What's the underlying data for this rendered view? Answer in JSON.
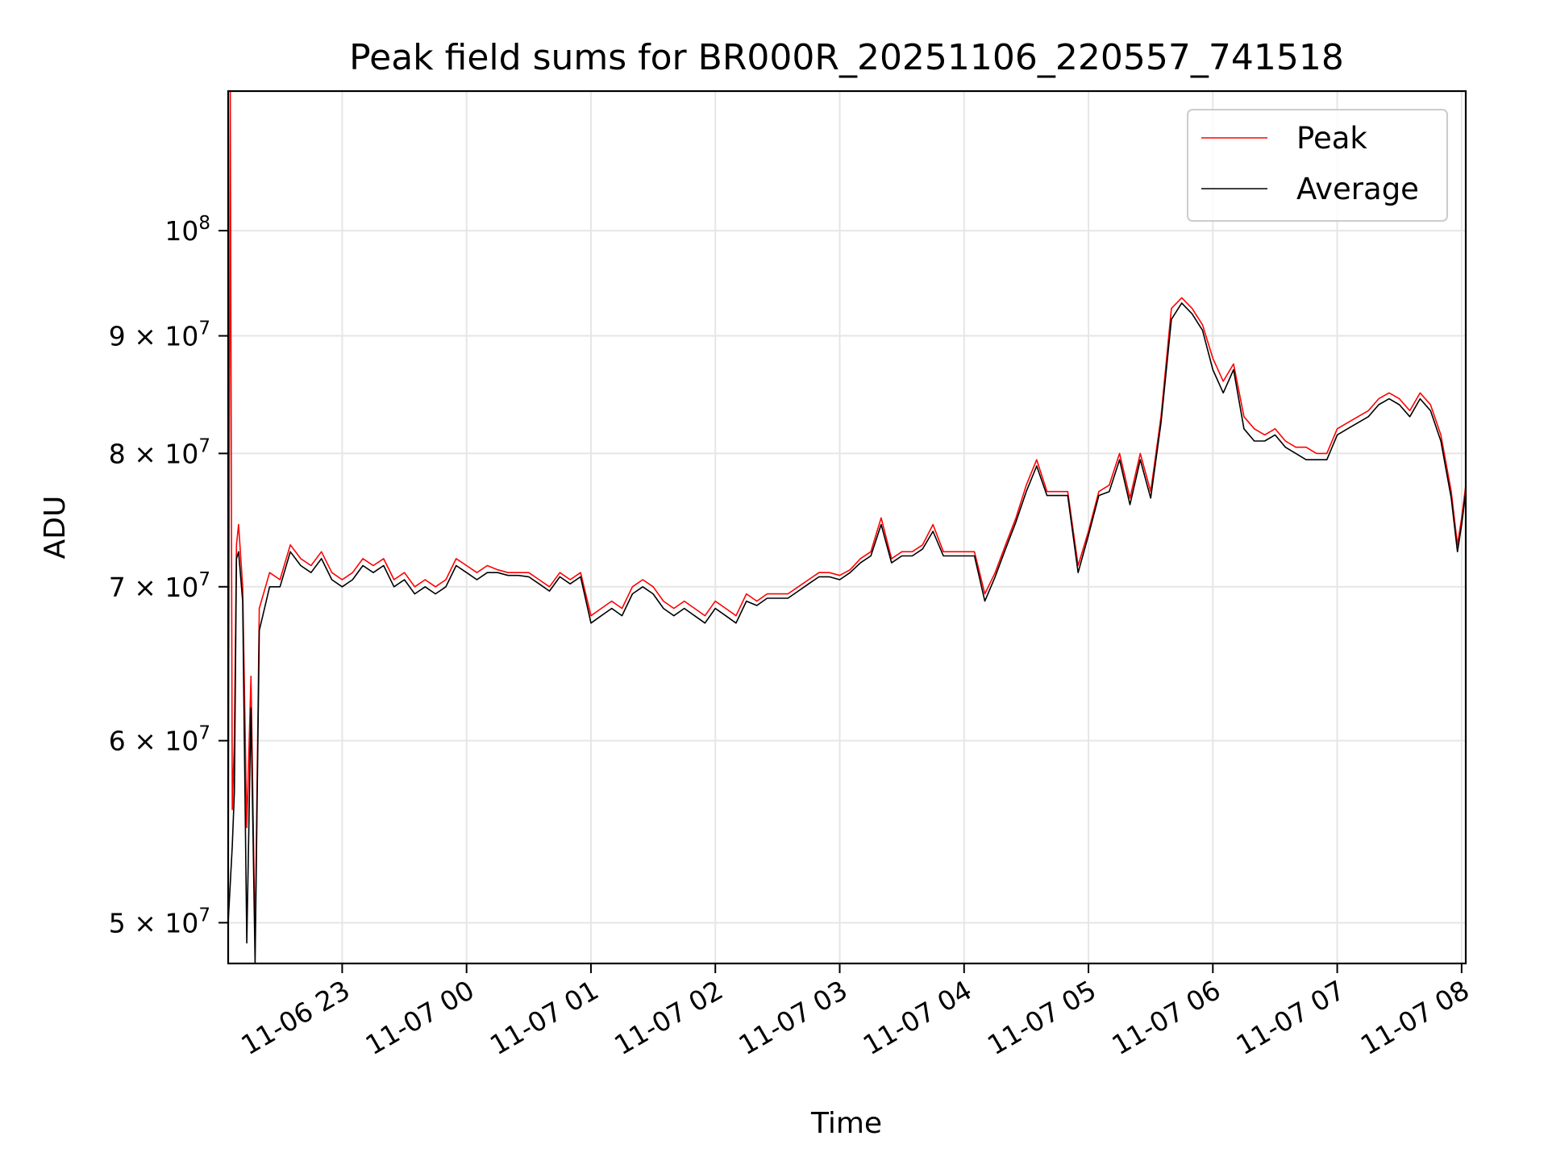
{
  "chart_data": {
    "type": "line",
    "title": "Peak field sums for BR000R_20251106_220557_741518",
    "xlabel": "Time",
    "ylabel": "ADU",
    "yscale": "log",
    "ylim": [
      48000000,
      115000000
    ],
    "xlim": [
      "11-06 22:05",
      "11-07 08:02"
    ],
    "grid": true,
    "legend_position": "top-right",
    "x_ticks": [
      {
        "value": "11-06 23:00",
        "label": "11-06 23"
      },
      {
        "value": "11-07 00:00",
        "label": "11-07 00"
      },
      {
        "value": "11-07 01:00",
        "label": "11-07 01"
      },
      {
        "value": "11-07 02:00",
        "label": "11-07 02"
      },
      {
        "value": "11-07 03:00",
        "label": "11-07 03"
      },
      {
        "value": "11-07 04:00",
        "label": "11-07 04"
      },
      {
        "value": "11-07 05:00",
        "label": "11-07 05"
      },
      {
        "value": "11-07 06:00",
        "label": "11-07 06"
      },
      {
        "value": "11-07 07:00",
        "label": "11-07 07"
      },
      {
        "value": "11-07 08:00",
        "label": "11-07 08"
      }
    ],
    "y_ticks": [
      {
        "value": 50000000,
        "mantissa": "5",
        "base": "10",
        "exp": "7"
      },
      {
        "value": 60000000,
        "mantissa": "6",
        "base": "10",
        "exp": "7"
      },
      {
        "value": 70000000,
        "mantissa": "7",
        "base": "10",
        "exp": "7"
      },
      {
        "value": 80000000,
        "mantissa": "8",
        "base": "10",
        "exp": "7"
      },
      {
        "value": 90000000,
        "mantissa": "9",
        "base": "10",
        "exp": "7"
      },
      {
        "value": 100000000,
        "mantissa": "",
        "base": "10",
        "exp": "8"
      }
    ],
    "series": [
      {
        "name": "Peak",
        "color": "#ff0000",
        "x": [
          "11-06 22:05",
          "11-06 22:06",
          "11-06 22:07",
          "11-06 22:08",
          "11-06 22:09",
          "11-06 22:10",
          "11-06 22:12",
          "11-06 22:14",
          "11-06 22:16",
          "11-06 22:18",
          "11-06 22:20",
          "11-06 22:25",
          "11-06 22:30",
          "11-06 22:35",
          "11-06 22:40",
          "11-06 22:45",
          "11-06 22:50",
          "11-06 22:55",
          "11-06 23:00",
          "11-06 23:05",
          "11-06 23:10",
          "11-06 23:15",
          "11-06 23:20",
          "11-06 23:25",
          "11-06 23:30",
          "11-06 23:35",
          "11-06 23:40",
          "11-06 23:45",
          "11-06 23:50",
          "11-06 23:55",
          "11-07 00:00",
          "11-07 00:05",
          "11-07 00:10",
          "11-07 00:15",
          "11-07 00:20",
          "11-07 00:25",
          "11-07 00:30",
          "11-07 00:35",
          "11-07 00:40",
          "11-07 00:45",
          "11-07 00:50",
          "11-07 00:55",
          "11-07 01:00",
          "11-07 01:05",
          "11-07 01:10",
          "11-07 01:15",
          "11-07 01:20",
          "11-07 01:25",
          "11-07 01:30",
          "11-07 01:35",
          "11-07 01:40",
          "11-07 01:45",
          "11-07 01:50",
          "11-07 01:55",
          "11-07 02:00",
          "11-07 02:05",
          "11-07 02:10",
          "11-07 02:15",
          "11-07 02:20",
          "11-07 02:25",
          "11-07 02:30",
          "11-07 02:35",
          "11-07 02:40",
          "11-07 02:45",
          "11-07 02:50",
          "11-07 02:55",
          "11-07 03:00",
          "11-07 03:05",
          "11-07 03:10",
          "11-07 03:15",
          "11-07 03:20",
          "11-07 03:25",
          "11-07 03:30",
          "11-07 03:35",
          "11-07 03:40",
          "11-07 03:45",
          "11-07 03:50",
          "11-07 03:55",
          "11-07 04:00",
          "11-07 04:05",
          "11-07 04:10",
          "11-07 04:15",
          "11-07 04:20",
          "11-07 04:25",
          "11-07 04:30",
          "11-07 04:35",
          "11-07 04:40",
          "11-07 04:45",
          "11-07 04:50",
          "11-07 04:55",
          "11-07 05:00",
          "11-07 05:05",
          "11-07 05:10",
          "11-07 05:15",
          "11-07 05:20",
          "11-07 05:25",
          "11-07 05:30",
          "11-07 05:35",
          "11-07 05:40",
          "11-07 05:45",
          "11-07 05:50",
          "11-07 05:55",
          "11-07 06:00",
          "11-07 06:05",
          "11-07 06:10",
          "11-07 06:15",
          "11-07 06:20",
          "11-07 06:25",
          "11-07 06:30",
          "11-07 06:35",
          "11-07 06:40",
          "11-07 06:45",
          "11-07 06:50",
          "11-07 06:55",
          "11-07 07:00",
          "11-07 07:05",
          "11-07 07:10",
          "11-07 07:15",
          "11-07 07:20",
          "11-07 07:25",
          "11-07 07:30",
          "11-07 07:35",
          "11-07 07:40",
          "11-07 07:45",
          "11-07 07:50",
          "11-07 07:55",
          "11-07 07:58",
          "11-07 08:00",
          "11-07 08:02"
        ],
        "y": [
          51000000,
          115000000,
          56000000,
          60000000,
          73000000,
          74500000,
          70000000,
          55000000,
          64000000,
          49000000,
          68500000,
          71000000,
          70500000,
          73000000,
          72000000,
          71500000,
          72500000,
          71000000,
          70500000,
          71000000,
          72000000,
          71500000,
          72000000,
          70500000,
          71000000,
          70000000,
          70500000,
          70000000,
          70500000,
          72000000,
          71500000,
          71000000,
          71500000,
          71200000,
          71000000,
          71000000,
          71000000,
          70500000,
          70000000,
          71000000,
          70500000,
          71000000,
          68000000,
          68500000,
          69000000,
          68500000,
          70000000,
          70500000,
          70000000,
          69000000,
          68500000,
          69000000,
          68500000,
          68000000,
          69000000,
          68500000,
          68000000,
          69500000,
          69000000,
          69500000,
          69500000,
          69500000,
          70000000,
          70500000,
          71000000,
          71000000,
          70800000,
          71200000,
          72000000,
          72500000,
          75000000,
          72000000,
          72500000,
          72500000,
          73000000,
          74500000,
          72500000,
          72500000,
          72500000,
          72500000,
          69500000,
          71000000,
          73000000,
          75000000,
          77500000,
          79500000,
          77000000,
          77000000,
          77000000,
          71500000,
          74000000,
          77000000,
          77500000,
          80000000,
          76500000,
          80000000,
          77000000,
          83000000,
          92500000,
          93500000,
          92500000,
          91000000,
          88000000,
          86000000,
          87500000,
          83000000,
          82000000,
          81500000,
          82000000,
          81000000,
          80500000,
          80500000,
          80000000,
          80000000,
          82000000,
          82500000,
          83000000,
          83500000,
          84500000,
          85000000,
          84500000,
          83500000,
          85000000,
          84000000,
          81500000,
          77000000,
          73000000,
          75000000,
          77500000
        ]
      },
      {
        "name": "Average",
        "color": "#000000",
        "x": [
          "11-06 22:05",
          "11-06 22:06",
          "11-06 22:07",
          "11-06 22:08",
          "11-06 22:09",
          "11-06 22:10",
          "11-06 22:12",
          "11-06 22:14",
          "11-06 22:16",
          "11-06 22:18",
          "11-06 22:20",
          "11-06 22:25",
          "11-06 22:30",
          "11-06 22:35",
          "11-06 22:40",
          "11-06 22:45",
          "11-06 22:50",
          "11-06 22:55",
          "11-06 23:00",
          "11-06 23:05",
          "11-06 23:10",
          "11-06 23:15",
          "11-06 23:20",
          "11-06 23:25",
          "11-06 23:30",
          "11-06 23:35",
          "11-06 23:40",
          "11-06 23:45",
          "11-06 23:50",
          "11-06 23:55",
          "11-07 00:00",
          "11-07 00:05",
          "11-07 00:10",
          "11-07 00:15",
          "11-07 00:20",
          "11-07 00:25",
          "11-07 00:30",
          "11-07 00:35",
          "11-07 00:40",
          "11-07 00:45",
          "11-07 00:50",
          "11-07 00:55",
          "11-07 01:00",
          "11-07 01:05",
          "11-07 01:10",
          "11-07 01:15",
          "11-07 01:20",
          "11-07 01:25",
          "11-07 01:30",
          "11-07 01:35",
          "11-07 01:40",
          "11-07 01:45",
          "11-07 01:50",
          "11-07 01:55",
          "11-07 02:00",
          "11-07 02:05",
          "11-07 02:10",
          "11-07 02:15",
          "11-07 02:20",
          "11-07 02:25",
          "11-07 02:30",
          "11-07 02:35",
          "11-07 02:40",
          "11-07 02:45",
          "11-07 02:50",
          "11-07 02:55",
          "11-07 03:00",
          "11-07 03:05",
          "11-07 03:10",
          "11-07 03:15",
          "11-07 03:20",
          "11-07 03:25",
          "11-07 03:30",
          "11-07 03:35",
          "11-07 03:40",
          "11-07 03:45",
          "11-07 03:50",
          "11-07 03:55",
          "11-07 04:00",
          "11-07 04:05",
          "11-07 04:10",
          "11-07 04:15",
          "11-07 04:20",
          "11-07 04:25",
          "11-07 04:30",
          "11-07 04:35",
          "11-07 04:40",
          "11-07 04:45",
          "11-07 04:50",
          "11-07 04:55",
          "11-07 05:00",
          "11-07 05:05",
          "11-07 05:10",
          "11-07 05:15",
          "11-07 05:20",
          "11-07 05:25",
          "11-07 05:30",
          "11-07 05:35",
          "11-07 05:40",
          "11-07 05:45",
          "11-07 05:50",
          "11-07 05:55",
          "11-07 06:00",
          "11-07 06:05",
          "11-07 06:10",
          "11-07 06:15",
          "11-07 06:20",
          "11-07 06:25",
          "11-07 06:30",
          "11-07 06:35",
          "11-07 06:40",
          "11-07 06:45",
          "11-07 06:50",
          "11-07 06:55",
          "11-07 07:00",
          "11-07 07:05",
          "11-07 07:10",
          "11-07 07:15",
          "11-07 07:20",
          "11-07 07:25",
          "11-07 07:30",
          "11-07 07:35",
          "11-07 07:40",
          "11-07 07:45",
          "11-07 07:50",
          "11-07 07:55",
          "11-07 07:58",
          "11-07 08:00",
          "11-07 08:02"
        ],
        "y": [
          50000000,
          52000000,
          54000000,
          57000000,
          72000000,
          72500000,
          69000000,
          49000000,
          62000000,
          48000000,
          67000000,
          70000000,
          70000000,
          72500000,
          71500000,
          71000000,
          72000000,
          70500000,
          70000000,
          70500000,
          71500000,
          71000000,
          71500000,
          70000000,
          70500000,
          69500000,
          70000000,
          69500000,
          70000000,
          71500000,
          71000000,
          70500000,
          71000000,
          71000000,
          70800000,
          70800000,
          70700000,
          70200000,
          69700000,
          70700000,
          70200000,
          70700000,
          67500000,
          68000000,
          68500000,
          68000000,
          69500000,
          70000000,
          69500000,
          68500000,
          68000000,
          68500000,
          68000000,
          67500000,
          68500000,
          68000000,
          67500000,
          69000000,
          68700000,
          69200000,
          69200000,
          69200000,
          69700000,
          70200000,
          70700000,
          70700000,
          70500000,
          71000000,
          71700000,
          72200000,
          74500000,
          71700000,
          72200000,
          72200000,
          72700000,
          74000000,
          72200000,
          72200000,
          72200000,
          72200000,
          69000000,
          70700000,
          72700000,
          74700000,
          77000000,
          79000000,
          76700000,
          76700000,
          76700000,
          71000000,
          73700000,
          76700000,
          77000000,
          79500000,
          76000000,
          79500000,
          76500000,
          82500000,
          91500000,
          93000000,
          92000000,
          90500000,
          87000000,
          85000000,
          87000000,
          82000000,
          81000000,
          81000000,
          81500000,
          80500000,
          80000000,
          79500000,
          79500000,
          79500000,
          81500000,
          82000000,
          82500000,
          83000000,
          84000000,
          84500000,
          84000000,
          83000000,
          84500000,
          83500000,
          81000000,
          76500000,
          72500000,
          74500000,
          77000000
        ]
      }
    ]
  }
}
